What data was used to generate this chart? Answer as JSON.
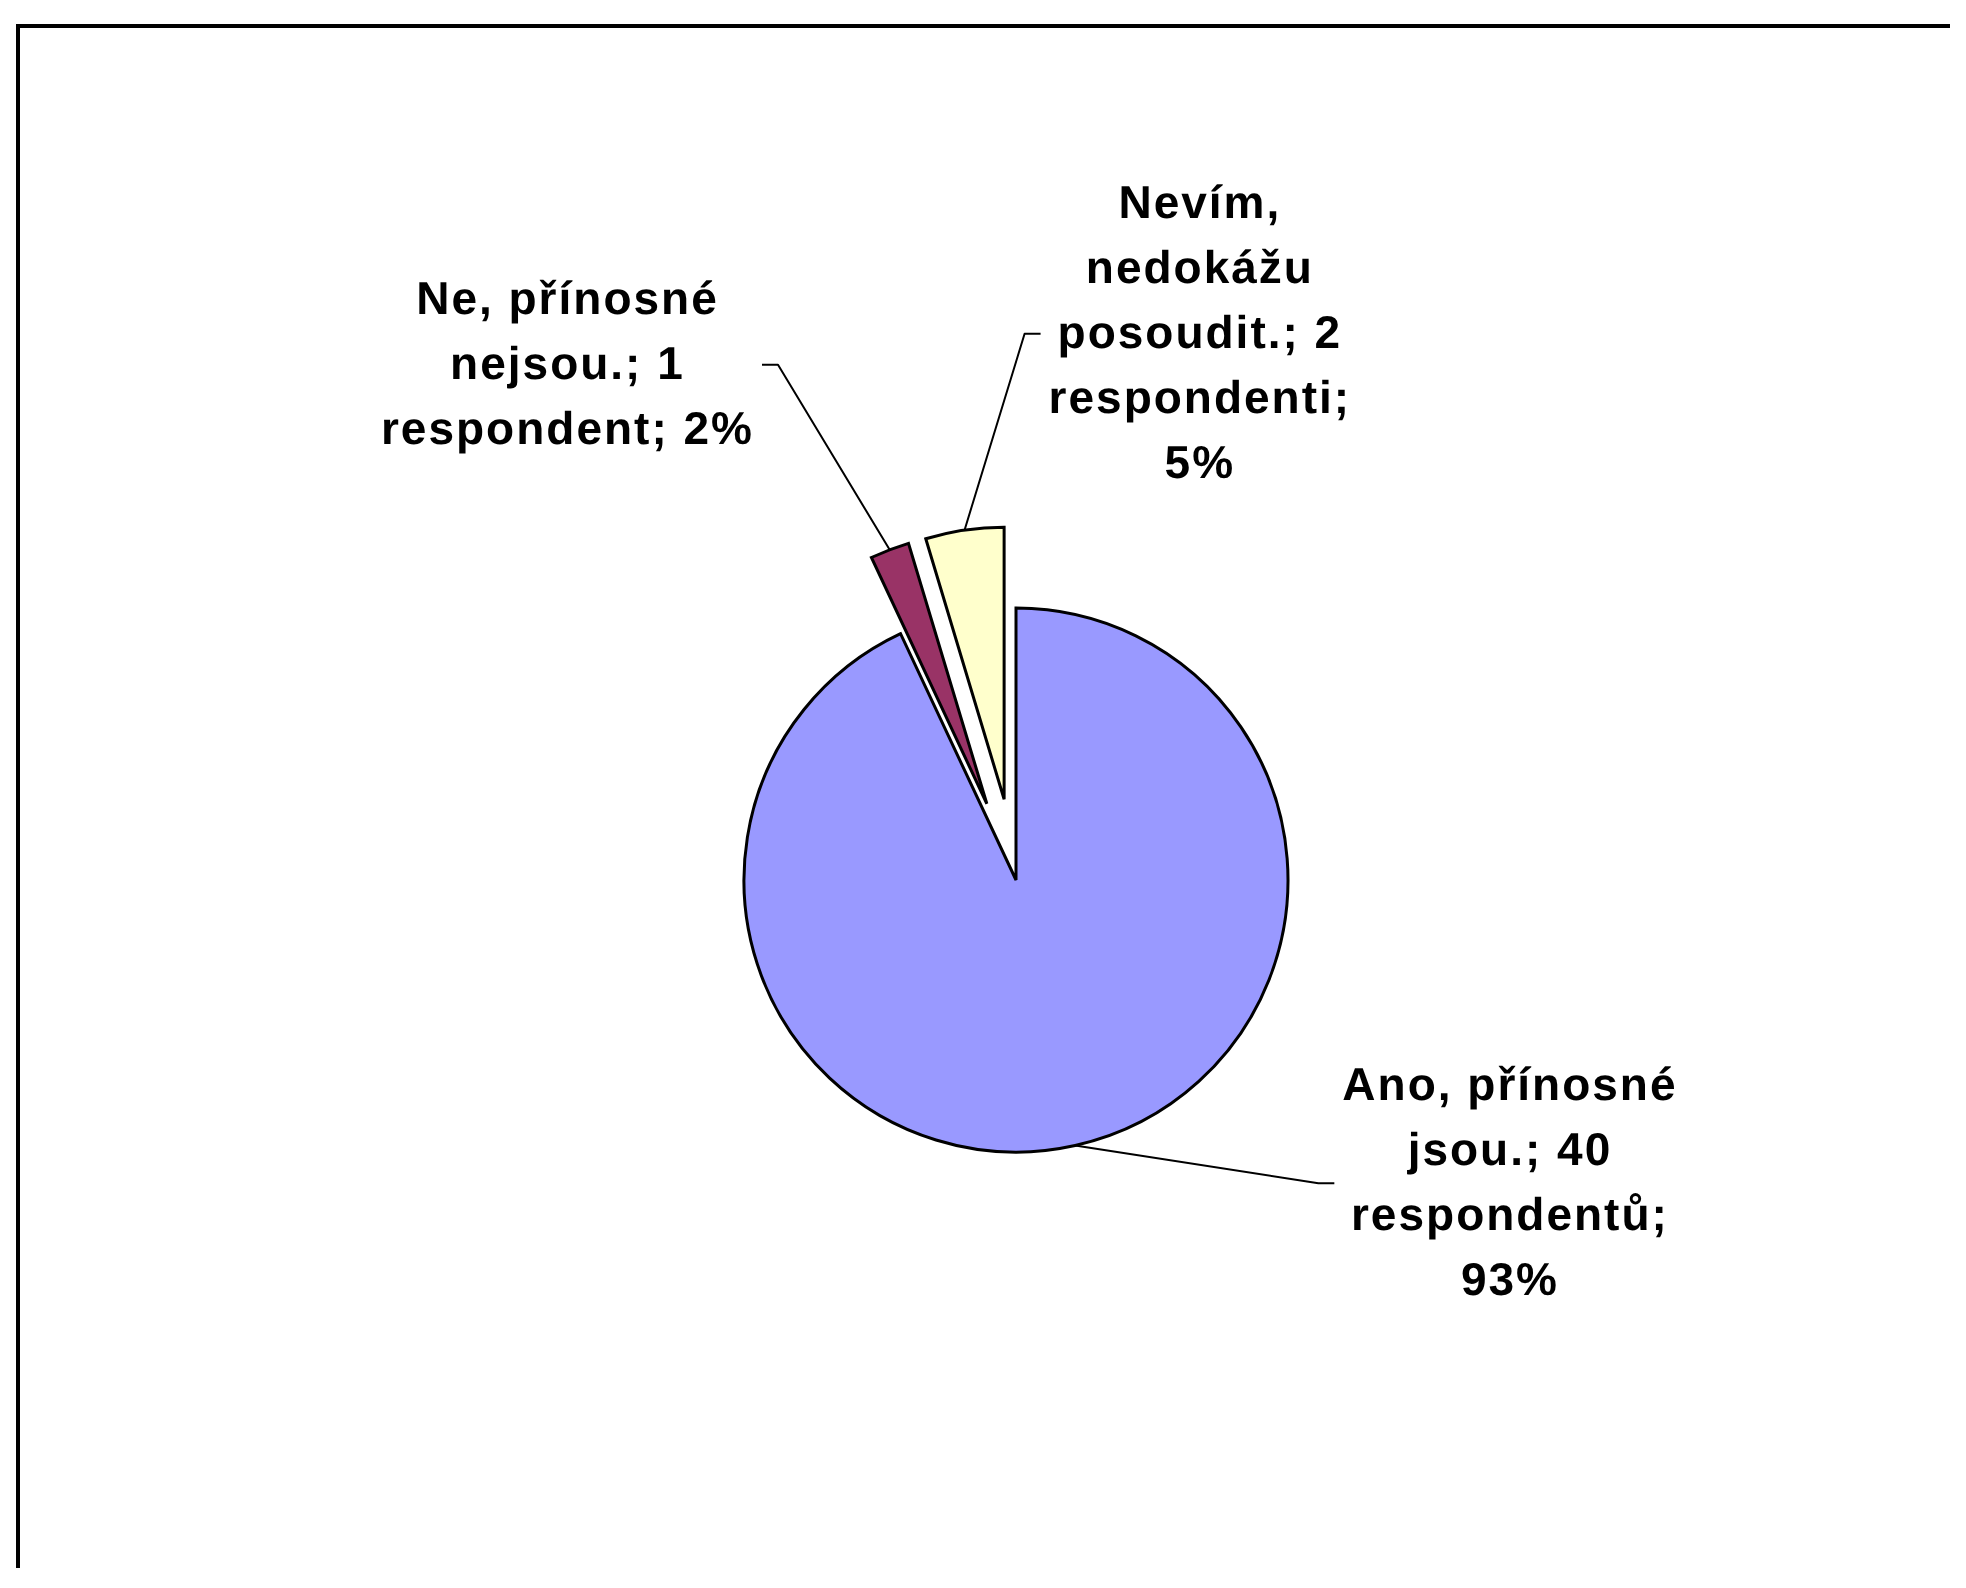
{
  "chart_data": {
    "type": "pie",
    "categories": [
      "Ano, přínosné jsou.",
      "Ne, přínosné nejsou.",
      "Nevím, nedokážu posoudit."
    ],
    "values": [
      40,
      1,
      2
    ],
    "colors": [
      "#9999ff",
      "#993366",
      "#ffffcc"
    ],
    "value_labels": [
      "40 respondentů; 93%",
      "1 respondent; 2%",
      "2 respondenti; 5%"
    ]
  }
}
